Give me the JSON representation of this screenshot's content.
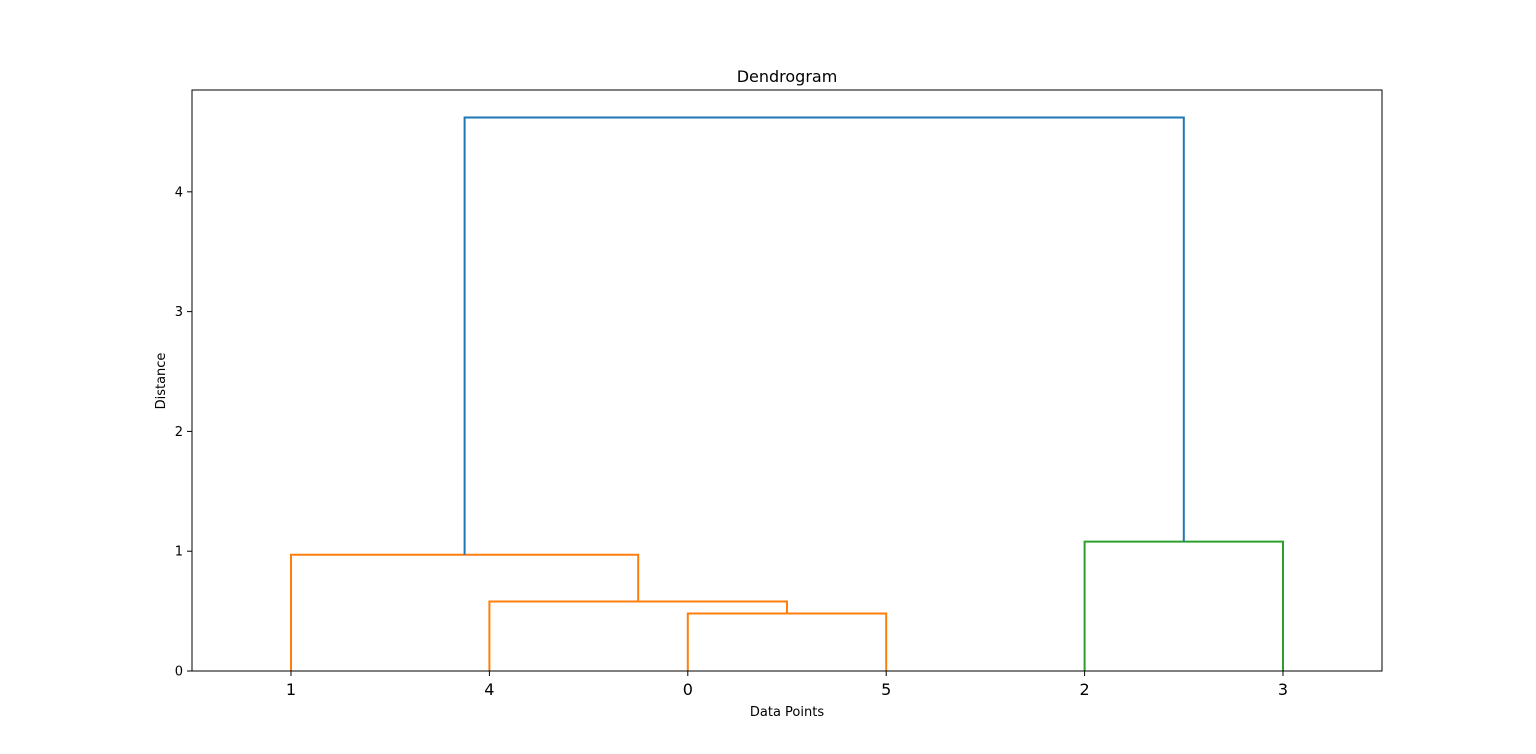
{
  "chart_data": {
    "type": "dendrogram",
    "title": "Dendrogram",
    "xlabel": "Data Points",
    "ylabel": "Distance",
    "leaf_order": [
      "1",
      "4",
      "0",
      "5",
      "2",
      "3"
    ],
    "ylim": [
      0,
      4.85
    ],
    "yticks": [
      "0",
      "1",
      "2",
      "3",
      "4"
    ],
    "grid": false,
    "colors": {
      "cluster_a": "#ff7f0e",
      "cluster_b": "#2ca02c",
      "above_threshold": "#1f77b4"
    },
    "merges": [
      {
        "left": "0",
        "right": "5",
        "distance": 0.48,
        "color": "#ff7f0e"
      },
      {
        "left": "4",
        "right": "(0,5)",
        "distance": 0.58,
        "color": "#ff7f0e"
      },
      {
        "left": "1",
        "right": "(4,(0,5))",
        "distance": 0.97,
        "color": "#ff7f0e"
      },
      {
        "left": "2",
        "right": "3",
        "distance": 1.08,
        "color": "#2ca02c"
      },
      {
        "left": "(1,4,0,5)",
        "right": "(2,3)",
        "distance": 4.62,
        "color": "#1f77b4"
      }
    ]
  }
}
